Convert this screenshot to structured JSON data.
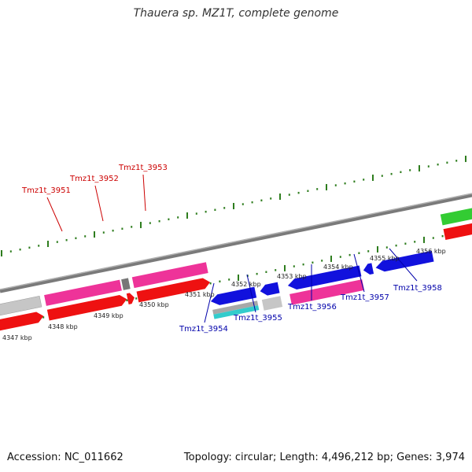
{
  "title": "Thauera sp. MZ1T, complete genome",
  "footer": {
    "accession": "Accession: NC_011662",
    "summary": "Topology: circular; Length: 4,496,212 bp; Genes: 3,974"
  },
  "colors": {
    "backbone": "#888888",
    "tick": "#2e7d1e",
    "red_label": "#cc0000",
    "blue_label": "#0000aa",
    "cds_red": "#ee1111",
    "cds_pink": "#ee3399",
    "cds_blue": "#1111dd",
    "cds_grey": "#c4c4c4",
    "cds_green": "#33cc33",
    "cds_cyan": "#33cccc"
  },
  "scale_labels": [
    "4347 kbp",
    "4348 kbp",
    "4349 kbp",
    "4350 kbp",
    "4351 kbp",
    "4352 kbp",
    "4353 kbp",
    "4354 kbp",
    "4355 kbp",
    "4356 kbp"
  ],
  "upper_genes": [
    "Tmz1t_3951",
    "Tmz1t_3952",
    "Tmz1t_3953"
  ],
  "lower_genes": [
    "Tmz1t_3954",
    "Tmz1t_3955",
    "Tmz1t_3956",
    "Tmz1t_3957",
    "Tmz1t_3958"
  ]
}
